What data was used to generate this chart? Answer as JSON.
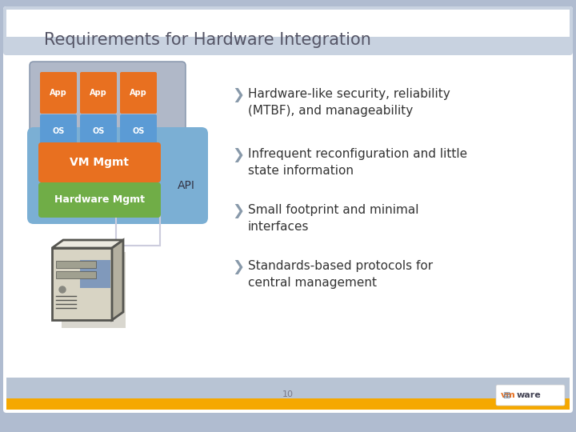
{
  "title": "Requirements for Hardware Integration",
  "title_fontsize": 15,
  "title_color": "#555566",
  "background_slide": "#b0bcd0",
  "bullet_points": [
    "Hardware-like security, reliability\n(MTBF), and manageability",
    "Infrequent reconfiguration and little\nstate information",
    "Small footprint and minimal\ninterfaces",
    "Standards-based protocols for\ncentral management"
  ],
  "bullet_arrow_color": "#8899aa",
  "bullet_text_color": "#333333",
  "bullet_fontsize": 11,
  "app_color": "#e87020",
  "os_color": "#5b9bd5",
  "vm_mgmt_color": "#e87020",
  "hw_mgmt_color": "#70ad47",
  "container_color": "#7bafd4",
  "api_text": "API",
  "vm_mgmt_text": "VM Mgmt",
  "hw_mgmt_text": "Hardware Mgmt",
  "app_text": "App",
  "os_text": "OS",
  "orange_bar_color": "#f5a800",
  "title_bar_color": "#c8d2e0",
  "footer_bg_color": "#b8c4d4",
  "page_num": "10"
}
